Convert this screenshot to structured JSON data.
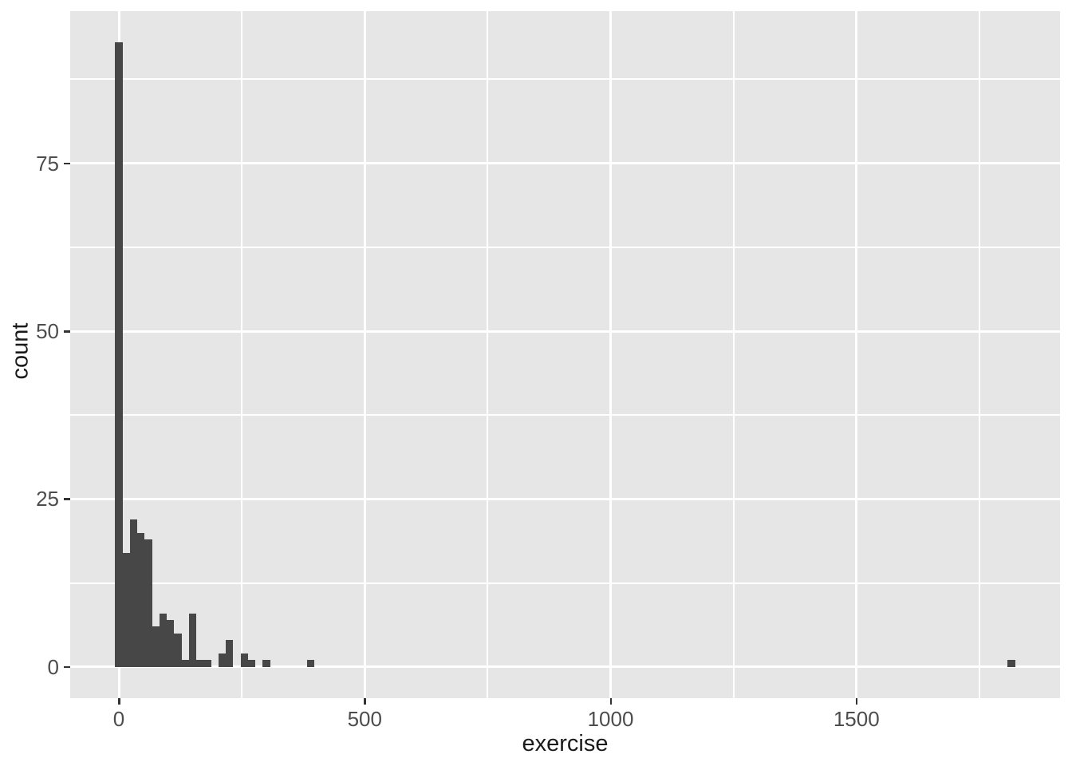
{
  "chart_data": {
    "type": "histogram",
    "title": "",
    "xlabel": "exercise",
    "ylabel": "count",
    "binwidth": 15,
    "bin_centers": [
      0,
      15,
      30,
      45,
      60,
      75,
      90,
      105,
      120,
      135,
      150,
      165,
      180,
      210,
      225,
      255,
      270,
      300,
      390,
      1815
    ],
    "counts": [
      93,
      17,
      22,
      20,
      19,
      6,
      8,
      7,
      5,
      1,
      8,
      1,
      1,
      2,
      4,
      2,
      1,
      1,
      1,
      1
    ],
    "x_major_ticks": [
      0,
      500,
      1000,
      1500
    ],
    "x_minor_ticks": [
      250,
      750,
      1250,
      1750
    ],
    "y_major_ticks": [
      0,
      25,
      50,
      75
    ],
    "y_minor_ticks": [
      12.5,
      37.5,
      62.5,
      87.5
    ],
    "x_tick_labels": [
      "0",
      "500",
      "1000",
      "1500"
    ],
    "y_tick_labels": [
      "0",
      "25",
      "50",
      "75"
    ],
    "xlim": [
      -99,
      1914
    ],
    "ylim": [
      -4.65,
      97.65
    ],
    "grid": "on",
    "legend": "none",
    "colors": {
      "figure_background": "#FFFFFF",
      "panel_background": "#E6E6E6",
      "gridline": "#FFFFFF",
      "bar_fill": "#474747",
      "tick_mark": "#333333",
      "tick_label": "#4D4D4D",
      "axis_title": "#1A1A1A"
    }
  }
}
